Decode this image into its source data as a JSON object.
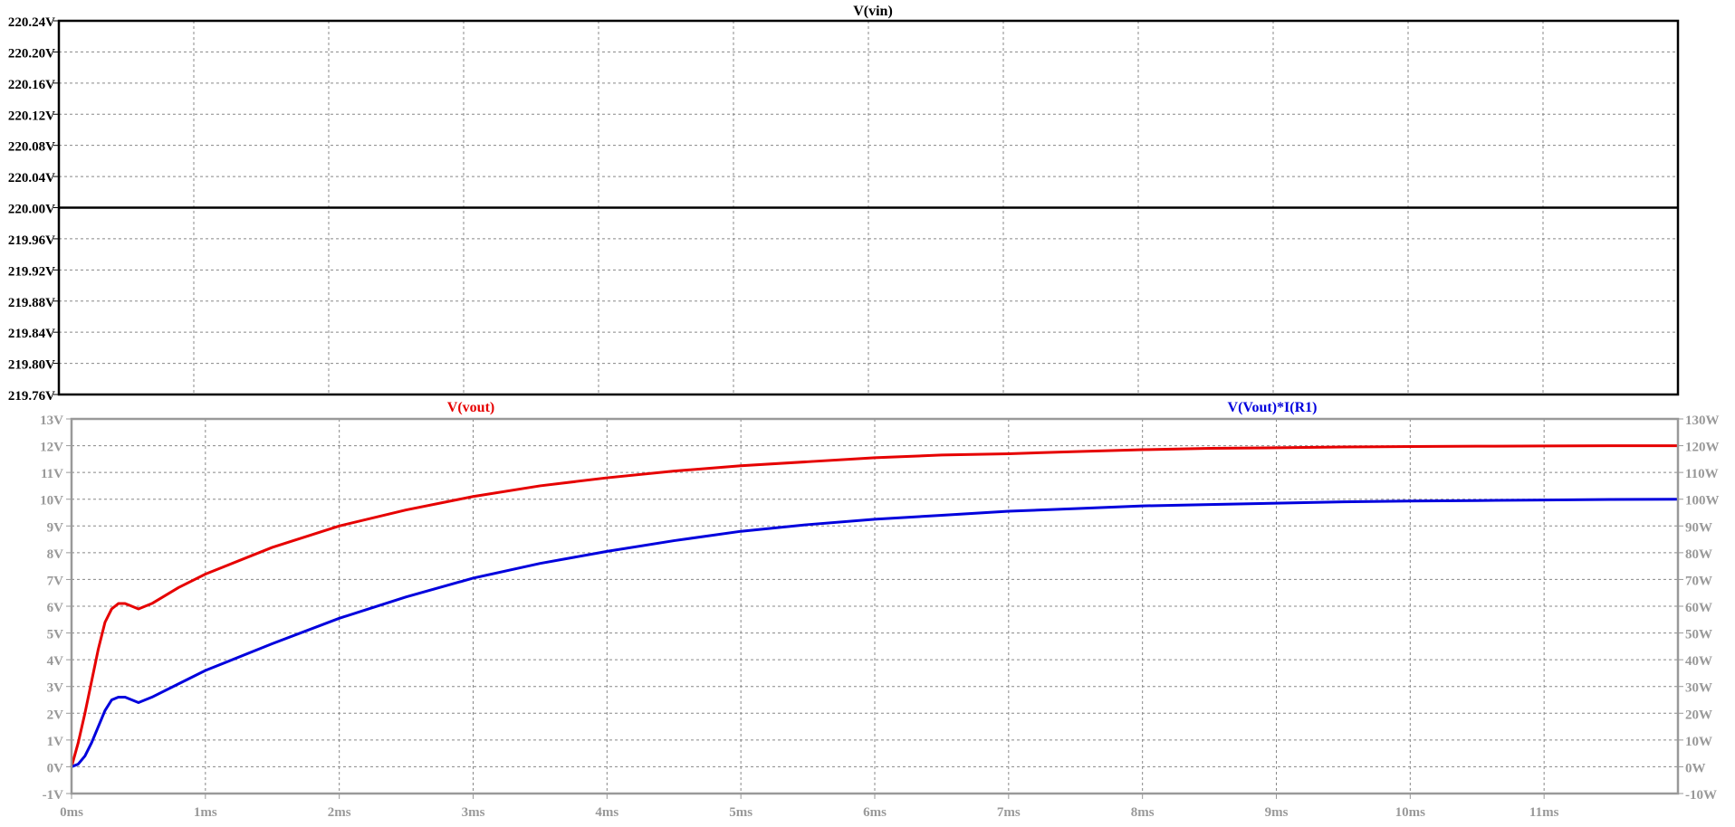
{
  "chart_data": [
    {
      "type": "line",
      "title": "V(vin)",
      "xlabel": "",
      "ylabel": "",
      "x_ticks": [
        "0ms",
        "1ms",
        "2ms",
        "3ms",
        "4ms",
        "5ms",
        "6ms",
        "7ms",
        "8ms",
        "9ms",
        "10ms",
        "11ms"
      ],
      "y_ticks": [
        "220.24V",
        "220.20V",
        "220.16V",
        "220.12V",
        "220.08V",
        "220.04V",
        "220.00V",
        "219.96V",
        "219.92V",
        "219.88V",
        "219.84V",
        "219.80V",
        "219.76V"
      ],
      "xlim": [
        0,
        12
      ],
      "ylim": [
        219.76,
        220.24
      ],
      "grid": true,
      "series": [
        {
          "name": "V(vin)",
          "color": "#000000",
          "x": [
            0,
            12
          ],
          "values": [
            220.0,
            220.0
          ]
        }
      ]
    },
    {
      "type": "line",
      "x_unit": "ms",
      "x_ticks": [
        "0ms",
        "1ms",
        "2ms",
        "3ms",
        "4ms",
        "5ms",
        "6ms",
        "7ms",
        "8ms",
        "9ms",
        "10ms",
        "11ms"
      ],
      "y_ticks_left": [
        "13V",
        "12V",
        "11V",
        "10V",
        "9V",
        "8V",
        "7V",
        "6V",
        "5V",
        "4V",
        "3V",
        "2V",
        "1V",
        "0V",
        "-1V"
      ],
      "y_ticks_right": [
        "130W",
        "120W",
        "110W",
        "100W",
        "90W",
        "80W",
        "70W",
        "60W",
        "50W",
        "40W",
        "30W",
        "20W",
        "10W",
        "0W",
        "-10W"
      ],
      "xlim": [
        0,
        12
      ],
      "ylim_left": [
        -1,
        13
      ],
      "ylim_right": [
        -10,
        130
      ],
      "grid": true,
      "series": [
        {
          "name": "V(vout)",
          "color": "#e60000",
          "axis": "left",
          "x": [
            0,
            0.05,
            0.1,
            0.15,
            0.2,
            0.25,
            0.3,
            0.35,
            0.4,
            0.45,
            0.5,
            0.55,
            0.6,
            0.8,
            1.0,
            1.5,
            2.0,
            2.5,
            3.0,
            3.5,
            4.0,
            4.5,
            5.0,
            5.5,
            6.0,
            6.5,
            7.0,
            7.5,
            8.0,
            8.5,
            9.0,
            9.5,
            10.0,
            10.5,
            11.0,
            11.5,
            12.0
          ],
          "values": [
            0,
            0.9,
            2.0,
            3.2,
            4.4,
            5.4,
            5.9,
            6.1,
            6.1,
            6.0,
            5.9,
            6.0,
            6.1,
            6.7,
            7.2,
            8.2,
            9.0,
            9.6,
            10.1,
            10.5,
            10.8,
            11.05,
            11.25,
            11.4,
            11.55,
            11.65,
            11.7,
            11.78,
            11.85,
            11.9,
            11.92,
            11.95,
            11.97,
            11.98,
            11.99,
            12.0,
            12.0
          ]
        },
        {
          "name": "V(Vout)*I(R1)",
          "color": "#0000dd",
          "axis": "right",
          "x": [
            0,
            0.05,
            0.1,
            0.15,
            0.2,
            0.25,
            0.3,
            0.35,
            0.4,
            0.45,
            0.5,
            0.55,
            0.6,
            0.8,
            1.0,
            1.5,
            2.0,
            2.5,
            3.0,
            3.5,
            4.0,
            4.5,
            5.0,
            5.5,
            6.0,
            6.5,
            7.0,
            7.5,
            8.0,
            8.5,
            9.0,
            9.5,
            10.0,
            10.5,
            11.0,
            11.5,
            12.0
          ],
          "values": [
            0,
            1,
            4,
            9,
            15,
            21,
            25,
            26,
            26,
            25,
            24,
            25,
            26,
            31,
            36,
            46,
            55.5,
            63.5,
            70.5,
            76,
            80.5,
            84.5,
            88,
            90.5,
            92.5,
            94,
            95.5,
            96.5,
            97.5,
            98,
            98.5,
            99,
            99.3,
            99.5,
            99.7,
            99.9,
            100
          ]
        }
      ]
    }
  ]
}
